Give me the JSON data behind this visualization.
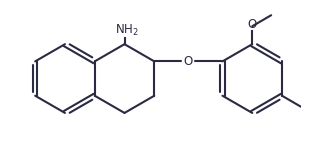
{
  "bg_color": "#ffffff",
  "line_color": "#2a2a42",
  "lw": 1.5,
  "font_size": 8.5,
  "bond_r": 0.34,
  "dbl_off": 0.022
}
